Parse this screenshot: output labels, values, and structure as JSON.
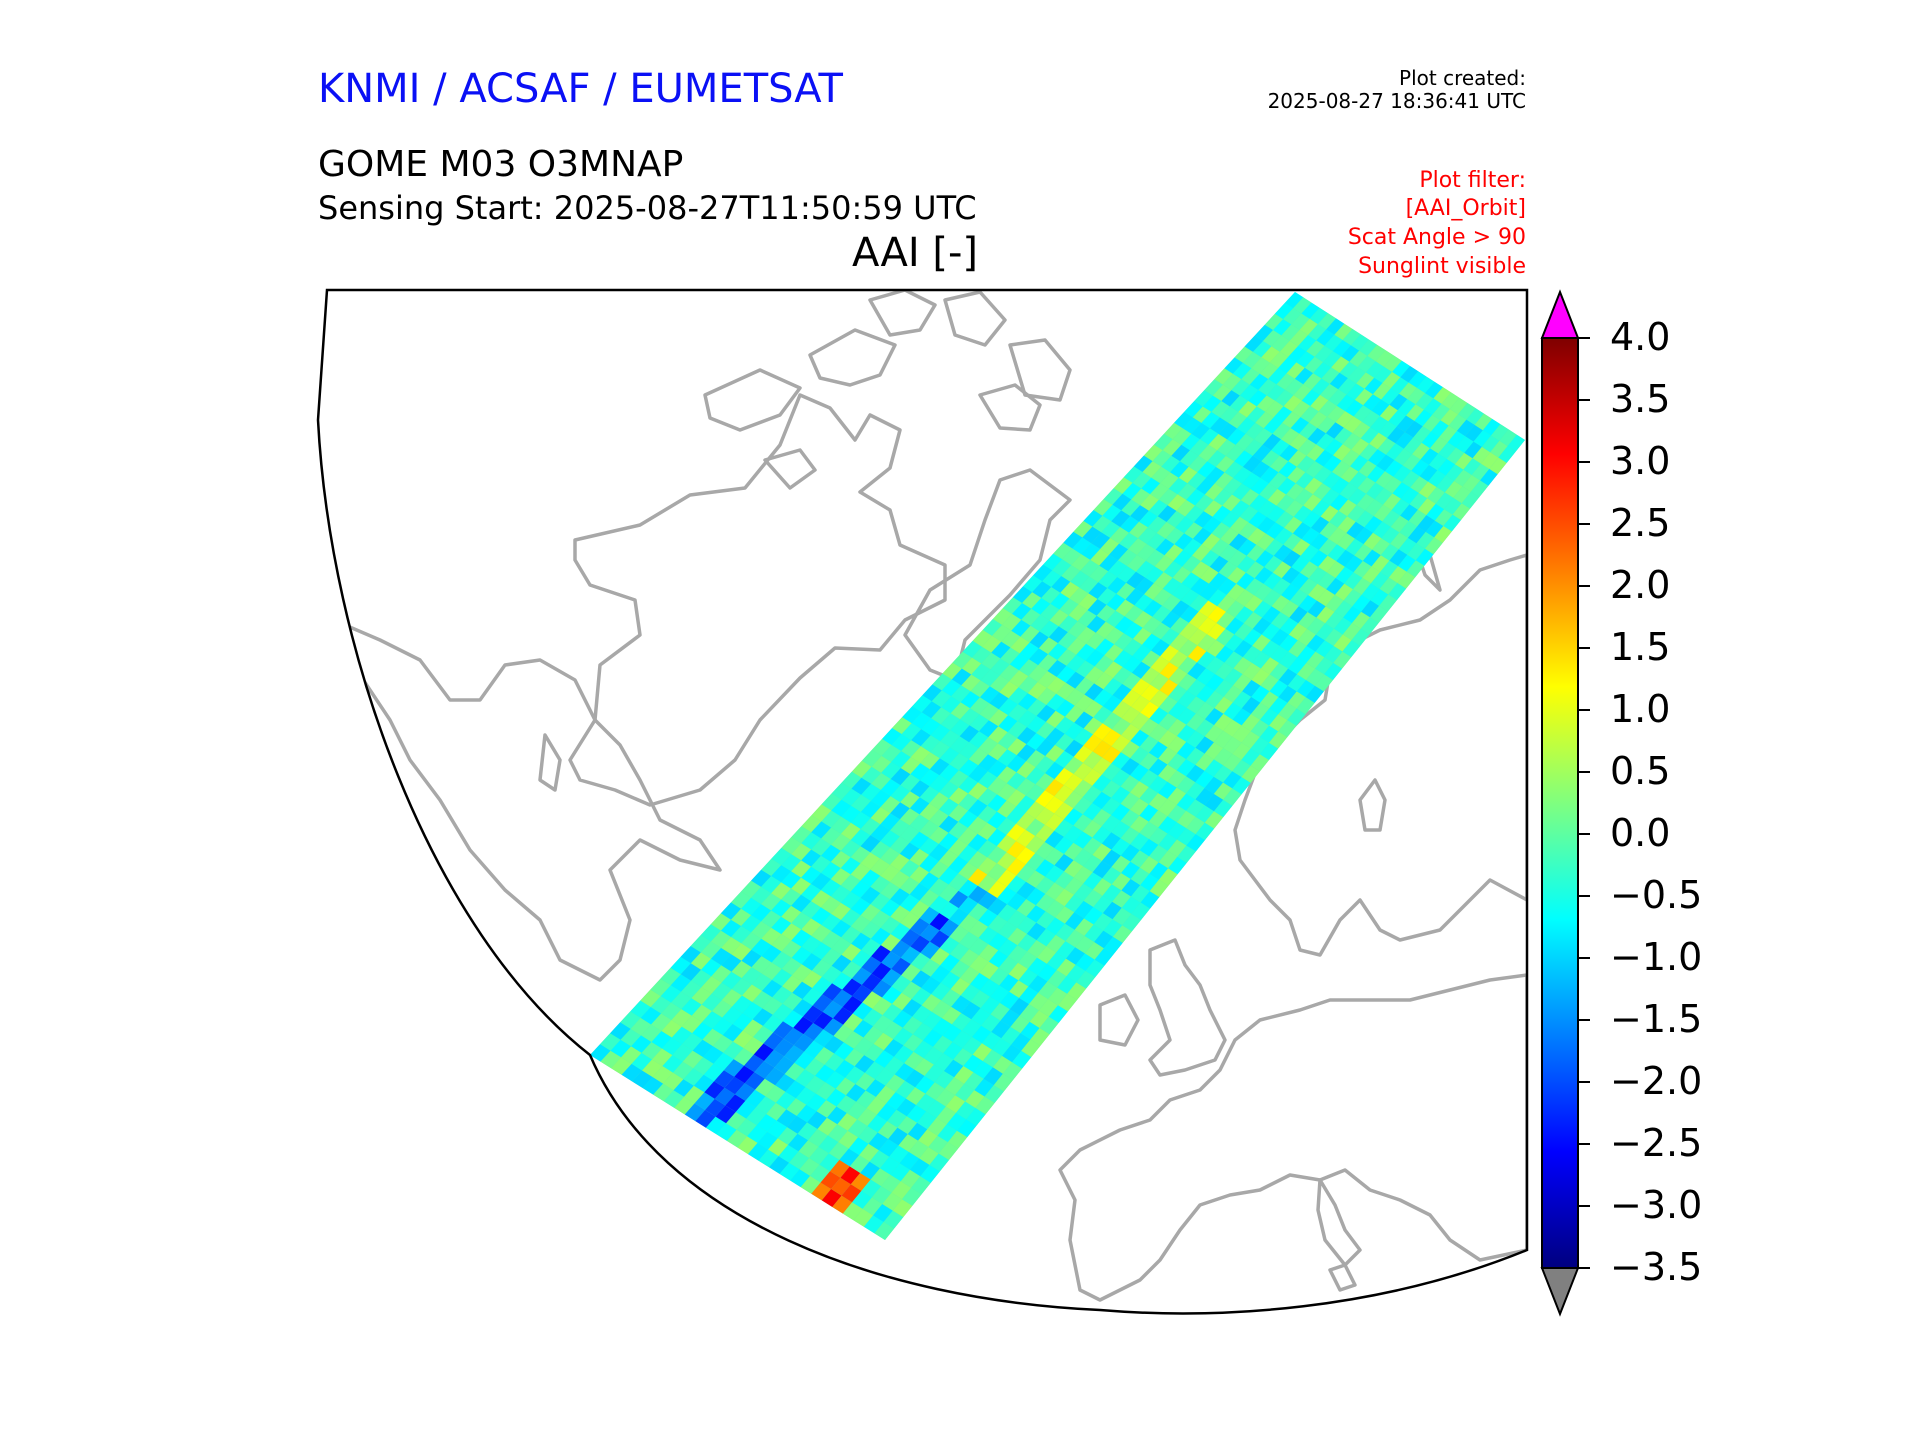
{
  "header": {
    "org": "KNMI / ACSAF / EUMETSAT",
    "created_label": "Plot created:",
    "created_value": "2025-08-27 18:36:41 UTC",
    "product": "GOME M03 O3MNAP",
    "sensing": "Sensing Start: 2025-08-27T11:50:59 UTC",
    "variable": "AAI [-]"
  },
  "filters": [
    "Plot filter:",
    "[AAI_Orbit]",
    "Scat Angle > 90",
    "Sunglint visible"
  ],
  "colorbar": {
    "min": -3.5,
    "max": 4.0,
    "tick_values": [
      4.0,
      3.5,
      3.0,
      2.5,
      2.0,
      1.5,
      1.0,
      0.5,
      0.0,
      -0.5,
      -1.0,
      -1.5,
      -2.0,
      -2.5,
      -3.0,
      -3.5
    ],
    "tick_labels": [
      "4.0",
      "3.5",
      "3.0",
      "2.5",
      "2.0",
      "1.5",
      "1.0",
      "0.5",
      "0.0",
      "−0.5",
      "−1.0",
      "−1.5",
      "−2.0",
      "−2.5",
      "−3.0",
      "−3.5"
    ],
    "over_color": "#ff00ff",
    "under_color": "#808080",
    "colormap": [
      "#00007f",
      "#0000ff",
      "#007fff",
      "#00ffff",
      "#7fff7f",
      "#ffff00",
      "#ff7f00",
      "#ff0000",
      "#7f0000"
    ]
  },
  "colors": {
    "coastline": "#a8a8a8",
    "swath_base": "#5fe2b0"
  }
}
